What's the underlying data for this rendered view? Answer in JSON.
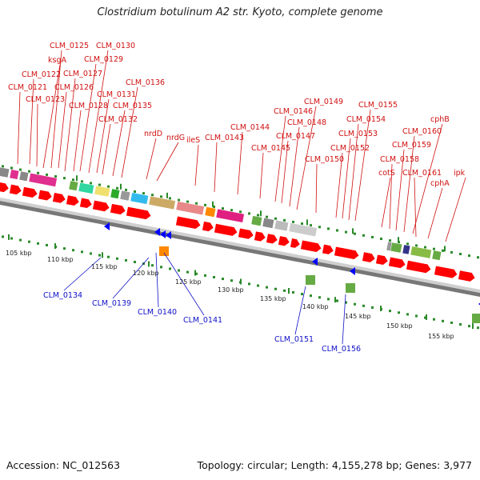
{
  "title": "Clostridium botulinum A2 str. Kyoto, complete genome",
  "footer": {
    "accession": "Accession: NC_012563",
    "info": "Topology: circular; Length: 4,155,278 bp; Genes: 3,977"
  },
  "colors": {
    "forward_gene": "#ff0000",
    "reverse_gene": "#0000ff",
    "label_forward": "#d01010",
    "label_reverse": "#1010c8",
    "backbone": "#888888",
    "tick": "#2a8a2a"
  },
  "forward_labels": [
    "CLM_0121",
    "CLM_0122",
    "CLM_0123",
    "ksgA",
    "CLM_0125",
    "CLM_0126",
    "CLM_0127",
    "CLM_0128",
    "CLM_0129",
    "CLM_0130",
    "CLM_0131",
    "CLM_0132",
    "CLM_0135",
    "CLM_0136",
    "nrdD",
    "nrdG",
    "ileS",
    "CLM_0143",
    "CLM_0144",
    "CLM_0145",
    "CLM_0146",
    "CLM_0147",
    "CLM_0148",
    "CLM_0149",
    "CLM_0150",
    "CLM_0152",
    "CLM_0153",
    "CLM_0154",
    "CLM_0155",
    "cotS",
    "CLM_0158",
    "CLM_0159",
    "CLM_0160",
    "cphB",
    "CLM_0161",
    "cphA",
    "ipk"
  ],
  "reverse_labels": [
    "CLM_0134",
    "CLM_0139",
    "CLM_0140",
    "CLM_0141",
    "CLM_0151",
    "CLM_0156"
  ],
  "kbp_labels": [
    "105 kbp",
    "110 kbp",
    "115 kbp",
    "120 kbp",
    "125 kbp",
    "130 kbp",
    "135 kbp",
    "140 kbp",
    "145 kbp",
    "150 kbp",
    "155 kbp"
  ]
}
